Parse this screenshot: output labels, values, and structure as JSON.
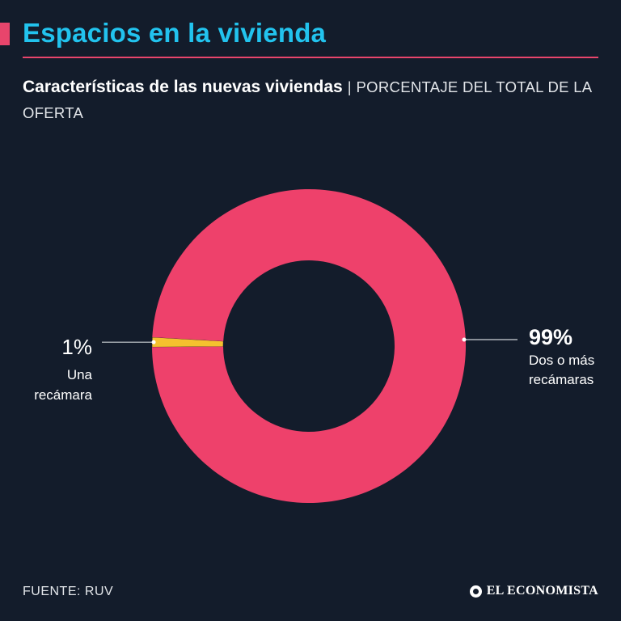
{
  "header": {
    "title": "Espacios en la vivienda",
    "subtitle_bold": "Características de las nuevas viviendas",
    "subtitle_separator": "|",
    "subtitle_rest": "PORCENTAJE DEL TOTAL DE LA OFERTA"
  },
  "colors": {
    "background": "#131c2b",
    "title": "#22c3ee",
    "accent": "#e8456c",
    "slice_small": "#f5c12e"
  },
  "chart_data": {
    "type": "pie",
    "donut": true,
    "slices": [
      {
        "value_label": "1%",
        "value": 1,
        "label_lines": [
          "Una",
          "recámara"
        ],
        "color": "#f5c12e"
      },
      {
        "value_label": "99%",
        "value": 99,
        "label_lines": [
          "Dos o más",
          "recámaras"
        ],
        "color": "#ee416b"
      }
    ]
  },
  "footer": {
    "source": "FUENTE: RUV",
    "logo_text": "EL ECONOMISTA"
  }
}
